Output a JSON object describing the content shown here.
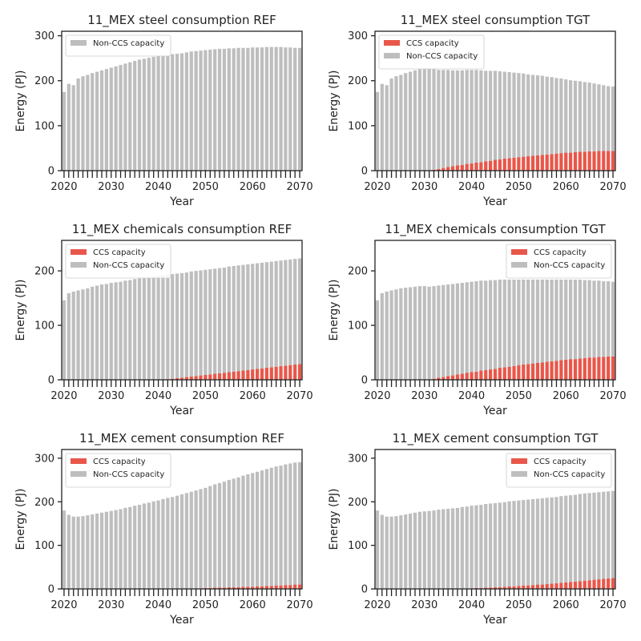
{
  "colors": {
    "ccs": "#E8574A",
    "non_ccs": "#BEBEBE",
    "axis": "#222222"
  },
  "chart_data": [
    {
      "type": "bar",
      "stacked": true,
      "title": "11_MEX steel consumption REF",
      "xlabel": "Year",
      "ylabel": "Energy (PJ)",
      "x_start": 2020,
      "x_end": 2070,
      "xticks": [
        2020,
        2030,
        2040,
        2050,
        2060,
        2070
      ],
      "ylim": [
        0,
        310
      ],
      "yticks": [
        0,
        100,
        200,
        300
      ],
      "legend": {
        "position": "top-left",
        "entries": [
          "Non-CCS capacity"
        ]
      },
      "series": [
        {
          "name": "CCS capacity",
          "color_key": "ccs",
          "values": [
            0,
            0,
            0,
            0,
            0,
            0,
            0,
            0,
            0,
            0,
            0,
            0,
            0,
            0,
            0,
            0,
            0,
            0,
            0,
            0,
            0,
            0,
            0,
            0,
            0,
            0,
            0,
            0,
            0,
            0,
            0,
            0,
            0,
            0,
            0,
            0,
            0,
            0,
            0,
            0,
            0,
            0,
            0,
            0,
            0,
            0,
            0,
            0,
            0,
            0,
            0
          ]
        },
        {
          "name": "Non-CCS capacity",
          "color_key": "non_ccs",
          "values": [
            175,
            193,
            190,
            205,
            210,
            213,
            217,
            220,
            223,
            226,
            229,
            232,
            235,
            238,
            241,
            244,
            247,
            249,
            251,
            253,
            255,
            257,
            258,
            259,
            260,
            261,
            263,
            265,
            266,
            267,
            268,
            269,
            270,
            271,
            271,
            272,
            272,
            273,
            273,
            273,
            274,
            274,
            274,
            275,
            275,
            275,
            275,
            274,
            274,
            273,
            273
          ]
        }
      ]
    },
    {
      "type": "bar",
      "stacked": true,
      "title": "11_MEX steel consumption TGT",
      "xlabel": "Year",
      "ylabel": "Energy (PJ)",
      "x_start": 2020,
      "x_end": 2070,
      "xticks": [
        2020,
        2030,
        2040,
        2050,
        2060,
        2070
      ],
      "ylim": [
        0,
        310
      ],
      "yticks": [
        0,
        100,
        200,
        300
      ],
      "legend": {
        "position": "top-left",
        "entries": [
          "CCS capacity",
          "Non-CCS capacity"
        ]
      },
      "series": [
        {
          "name": "CCS capacity",
          "color_key": "ccs",
          "values": [
            0,
            0,
            0,
            0,
            0,
            0,
            0,
            0,
            0,
            0,
            0,
            0,
            2,
            4,
            6,
            8,
            10,
            12,
            13,
            15,
            16,
            18,
            19,
            21,
            22,
            24,
            25,
            27,
            28,
            29,
            30,
            31,
            32,
            33,
            34,
            35,
            36,
            37,
            38,
            39,
            40,
            40,
            41,
            42,
            42,
            43,
            43,
            44,
            44,
            44,
            44
          ]
        },
        {
          "name": "Non-CCS capacity",
          "color_key": "non_ccs",
          "values": [
            175,
            193,
            190,
            205,
            210,
            213,
            217,
            220,
            223,
            226,
            227,
            226,
            224,
            220,
            218,
            216,
            213,
            211,
            210,
            209,
            208,
            206,
            204,
            201,
            200,
            198,
            196,
            193,
            191,
            189,
            187,
            185,
            182,
            180,
            178,
            176,
            173,
            171,
            168,
            166,
            163,
            161,
            159,
            157,
            155,
            153,
            151,
            148,
            146,
            144,
            143
          ]
        }
      ]
    },
    {
      "type": "bar",
      "stacked": true,
      "title": "11_MEX chemicals consumption REF",
      "xlabel": "Year",
      "ylabel": "Energy (PJ)",
      "x_start": 2020,
      "x_end": 2070,
      "xticks": [
        2020,
        2030,
        2040,
        2050,
        2060,
        2070
      ],
      "ylim": [
        0,
        256
      ],
      "yticks": [
        0,
        100,
        200
      ],
      "legend": {
        "position": "top-left",
        "entries": [
          "CCS capacity",
          "Non-CCS capacity"
        ]
      },
      "series": [
        {
          "name": "CCS capacity",
          "color_key": "ccs",
          "values": [
            0,
            0,
            0,
            0,
            0,
            0,
            0,
            0,
            0,
            0,
            0,
            0,
            0,
            0,
            0,
            0,
            0,
            0,
            0,
            0,
            0,
            0,
            1,
            2,
            3,
            4,
            5,
            6,
            7,
            8,
            9,
            10,
            11,
            12,
            13,
            14,
            15,
            16,
            17,
            18,
            19,
            20,
            21,
            22,
            23,
            24,
            25,
            26,
            27,
            28,
            29
          ]
        },
        {
          "name": "Non-CCS capacity",
          "color_key": "non_ccs",
          "values": [
            146,
            159,
            162,
            164,
            166,
            168,
            171,
            173,
            175,
            176,
            178,
            179,
            180,
            182,
            183,
            185,
            186,
            187,
            188,
            190,
            191,
            192,
            192,
            192,
            192,
            192,
            192,
            193,
            193,
            193,
            193,
            193,
            193,
            193,
            193,
            194,
            194,
            194,
            194,
            194,
            194,
            194,
            194,
            194,
            194,
            194,
            194,
            194,
            194,
            194,
            194
          ]
        }
      ]
    },
    {
      "type": "bar",
      "stacked": true,
      "title": "11_MEX chemicals consumption TGT",
      "xlabel": "Year",
      "ylabel": "Energy (PJ)",
      "x_start": 2020,
      "x_end": 2070,
      "xticks": [
        2020,
        2030,
        2040,
        2050,
        2060,
        2070
      ],
      "ylim": [
        0,
        256
      ],
      "yticks": [
        0,
        100,
        200
      ],
      "legend": {
        "position": "top-right",
        "entries": [
          "CCS capacity",
          "Non-CCS capacity"
        ]
      },
      "series": [
        {
          "name": "CCS capacity",
          "color_key": "ccs",
          "values": [
            0,
            0,
            0,
            0,
            0,
            0,
            0,
            0,
            0,
            0,
            0,
            0,
            2,
            4,
            5,
            7,
            8,
            10,
            11,
            13,
            14,
            15,
            17,
            18,
            19,
            20,
            22,
            23,
            24,
            25,
            27,
            28,
            29,
            30,
            31,
            32,
            33,
            34,
            35,
            36,
            37,
            38,
            38,
            39,
            40,
            41,
            41,
            42,
            42,
            43,
            43
          ]
        },
        {
          "name": "Non-CCS capacity",
          "color_key": "non_ccs",
          "values": [
            146,
            159,
            162,
            164,
            166,
            168,
            169,
            170,
            171,
            172,
            172,
            171,
            170,
            169,
            169,
            168,
            168,
            167,
            167,
            166,
            166,
            166,
            165,
            164,
            164,
            163,
            162,
            161,
            160,
            159,
            157,
            156,
            155,
            154,
            153,
            152,
            151,
            150,
            149,
            148,
            147,
            146,
            146,
            145,
            143,
            142,
            141,
            140,
            139,
            138,
            137
          ]
        }
      ]
    },
    {
      "type": "bar",
      "stacked": true,
      "title": "11_MEX cement consumption REF",
      "xlabel": "Year",
      "ylabel": "Energy (PJ)",
      "x_start": 2020,
      "x_end": 2070,
      "xticks": [
        2020,
        2030,
        2040,
        2050,
        2060,
        2070
      ],
      "ylim": [
        0,
        320
      ],
      "yticks": [
        0,
        100,
        200,
        300
      ],
      "legend": {
        "position": "top-left",
        "entries": [
          "CCS capacity",
          "Non-CCS capacity"
        ]
      },
      "series": [
        {
          "name": "CCS capacity",
          "color_key": "ccs",
          "values": [
            0,
            0,
            0,
            0,
            0,
            0,
            0,
            0,
            0,
            0,
            0,
            0,
            0,
            0,
            0,
            0,
            0,
            0,
            0,
            0,
            0,
            0,
            0,
            0,
            0,
            0,
            0,
            0,
            0,
            0,
            2,
            2,
            3,
            3,
            3,
            4,
            4,
            4,
            5,
            5,
            5,
            6,
            6,
            7,
            7,
            8,
            8,
            9,
            9,
            10,
            10
          ]
        },
        {
          "name": "Non-CCS capacity",
          "color_key": "non_ccs",
          "values": [
            180,
            170,
            166,
            166,
            167,
            169,
            171,
            173,
            175,
            177,
            179,
            181,
            183,
            186,
            188,
            191,
            193,
            196,
            198,
            201,
            203,
            206,
            209,
            211,
            214,
            217,
            220,
            223,
            226,
            229,
            230,
            234,
            237,
            240,
            243,
            246,
            249,
            252,
            255,
            258,
            261,
            263,
            266,
            268,
            271,
            273,
            275,
            277,
            279,
            280,
            281
          ]
        }
      ]
    },
    {
      "type": "bar",
      "stacked": true,
      "title": "11_MEX cement consumption TGT",
      "xlabel": "Year",
      "ylabel": "Energy (PJ)",
      "x_start": 2020,
      "x_end": 2070,
      "xticks": [
        2020,
        2030,
        2040,
        2050,
        2060,
        2070
      ],
      "ylim": [
        0,
        320
      ],
      "yticks": [
        0,
        100,
        200,
        300
      ],
      "legend": {
        "position": "top-right",
        "entries": [
          "CCS capacity",
          "Non-CCS capacity"
        ]
      },
      "series": [
        {
          "name": "CCS capacity",
          "color_key": "ccs",
          "values": [
            0,
            0,
            0,
            0,
            0,
            0,
            0,
            0,
            0,
            0,
            0,
            0,
            0,
            0,
            0,
            0,
            0,
            0,
            0,
            0,
            1,
            2,
            2,
            3,
            3,
            4,
            4,
            5,
            6,
            6,
            7,
            8,
            8,
            9,
            10,
            10,
            11,
            12,
            13,
            14,
            15,
            16,
            17,
            18,
            19,
            20,
            21,
            22,
            23,
            24,
            25
          ]
        },
        {
          "name": "Non-CCS capacity",
          "color_key": "non_ccs",
          "values": [
            180,
            170,
            166,
            166,
            167,
            169,
            171,
            173,
            175,
            177,
            178,
            179,
            180,
            182,
            183,
            184,
            185,
            186,
            188,
            189,
            190,
            190,
            191,
            192,
            193,
            193,
            194,
            194,
            195,
            196,
            196,
            196,
            197,
            197,
            197,
            198,
            198,
            198,
            198,
            199,
            199,
            199,
            199,
            200,
            200,
            200,
            200,
            200,
            200,
            200,
            200
          ]
        }
      ]
    }
  ]
}
